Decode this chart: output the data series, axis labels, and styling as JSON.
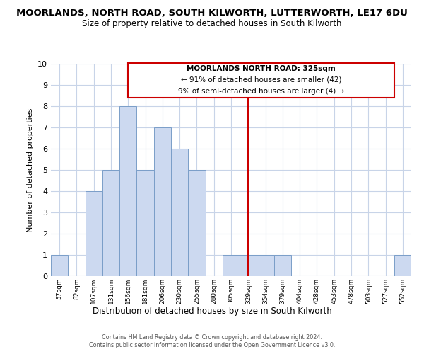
{
  "title": "MOORLANDS, NORTH ROAD, SOUTH KILWORTH, LUTTERWORTH, LE17 6DU",
  "subtitle": "Size of property relative to detached houses in South Kilworth",
  "xlabel": "Distribution of detached houses by size in South Kilworth",
  "ylabel": "Number of detached properties",
  "bar_labels": [
    "57sqm",
    "82sqm",
    "107sqm",
    "131sqm",
    "156sqm",
    "181sqm",
    "206sqm",
    "230sqm",
    "255sqm",
    "280sqm",
    "305sqm",
    "329sqm",
    "354sqm",
    "379sqm",
    "404sqm",
    "428sqm",
    "453sqm",
    "478sqm",
    "503sqm",
    "527sqm",
    "552sqm"
  ],
  "bar_values": [
    1,
    0,
    4,
    5,
    8,
    5,
    7,
    6,
    5,
    0,
    1,
    1,
    1,
    1,
    0,
    0,
    0,
    0,
    0,
    0,
    1
  ],
  "bar_color": "#ccd9f0",
  "bar_edge_color": "#7a9ec8",
  "vline_index": 11,
  "vline_color": "#cc0000",
  "annotation_box_color": "#cc0000",
  "ylim": [
    0,
    10
  ],
  "yticks": [
    0,
    1,
    2,
    3,
    4,
    5,
    6,
    7,
    8,
    9,
    10
  ],
  "grid_color": "#c8d4e8",
  "annotation_title": "MOORLANDS NORTH ROAD: 325sqm",
  "annotation_line1": "← 91% of detached houses are smaller (42)",
  "annotation_line2": "9% of semi-detached houses are larger (4) →",
  "footnote1": "Contains HM Land Registry data © Crown copyright and database right 2024.",
  "footnote2": "Contains public sector information licensed under the Open Government Licence v3.0.",
  "title_fontsize": 9.5,
  "subtitle_fontsize": 8.5
}
